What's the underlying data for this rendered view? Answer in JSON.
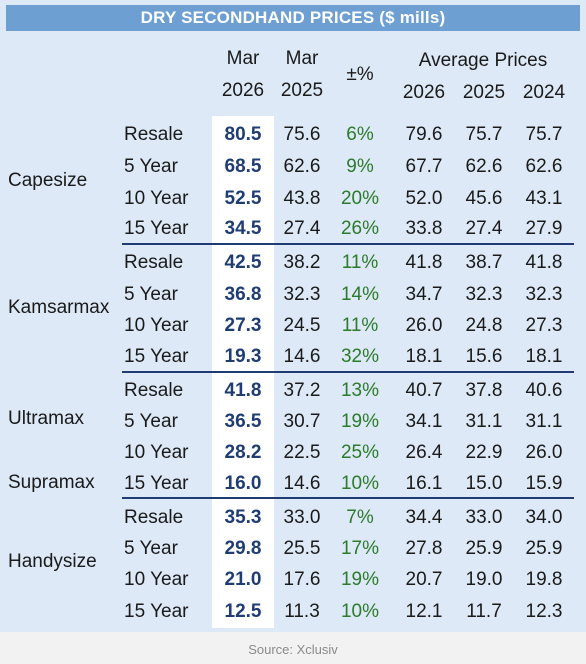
{
  "title": "DRY SECONDHAND PRICES ($ mills)",
  "headers": {
    "mar_a": "Mar",
    "year_a": "2026",
    "mar_b": "Mar",
    "year_b": "2025",
    "pct": "±%",
    "avg": "Average Prices",
    "avg_y1": "2026",
    "avg_y2": "2025",
    "avg_y3": "2024"
  },
  "groups": [
    {
      "name": "Capesize",
      "rows": [
        {
          "age": "Resale",
          "cur": "80.5",
          "prev": "75.6",
          "chg": "6%",
          "a1": "79.6",
          "a2": "75.7",
          "a3": "75.7"
        },
        {
          "age": "5 Year",
          "cur": "68.5",
          "prev": "62.6",
          "chg": "9%",
          "a1": "67.7",
          "a2": "62.6",
          "a3": "62.6"
        },
        {
          "age": "10 Year",
          "cur": "52.5",
          "prev": "43.8",
          "chg": "20%",
          "a1": "52.0",
          "a2": "45.6",
          "a3": "43.1"
        },
        {
          "age": "15 Year",
          "cur": "34.5",
          "prev": "27.4",
          "chg": "26%",
          "a1": "33.8",
          "a2": "27.4",
          "a3": "27.9"
        }
      ]
    },
    {
      "name": "Kamsarmax",
      "rows": [
        {
          "age": "Resale",
          "cur": "42.5",
          "prev": "38.2",
          "chg": "11%",
          "a1": "41.8",
          "a2": "38.7",
          "a3": "41.8"
        },
        {
          "age": "5 Year",
          "cur": "36.8",
          "prev": "32.3",
          "chg": "14%",
          "a1": "34.7",
          "a2": "32.3",
          "a3": "32.3"
        },
        {
          "age": "10 Year",
          "cur": "27.3",
          "prev": "24.5",
          "chg": "11%",
          "a1": "26.0",
          "a2": "24.8",
          "a3": "27.3"
        },
        {
          "age": "15 Year",
          "cur": "19.3",
          "prev": "14.6",
          "chg": "32%",
          "a1": "18.1",
          "a2": "15.6",
          "a3": "18.1"
        }
      ]
    },
    {
      "name": "Ultramax",
      "name2": "Supramax",
      "rows": [
        {
          "age": "Resale",
          "cur": "41.8",
          "prev": "37.2",
          "chg": "13%",
          "a1": "40.7",
          "a2": "37.8",
          "a3": "40.6"
        },
        {
          "age": "5 Year",
          "cur": "36.5",
          "prev": "30.7",
          "chg": "19%",
          "a1": "34.1",
          "a2": "31.1",
          "a3": "31.1"
        },
        {
          "age": "10 Year",
          "cur": "28.2",
          "prev": "22.5",
          "chg": "25%",
          "a1": "26.4",
          "a2": "22.9",
          "a3": "26.0"
        },
        {
          "age": "15 Year",
          "cur": "16.0",
          "prev": "14.6",
          "chg": "10%",
          "a1": "16.1",
          "a2": "15.0",
          "a3": "15.9"
        }
      ]
    },
    {
      "name": "Handysize",
      "rows": [
        {
          "age": "Resale",
          "cur": "35.3",
          "prev": "33.0",
          "chg": "7%",
          "a1": "34.4",
          "a2": "33.0",
          "a3": "34.0"
        },
        {
          "age": "5 Year",
          "cur": "29.8",
          "prev": "25.5",
          "chg": "17%",
          "a1": "27.8",
          "a2": "25.9",
          "a3": "25.9"
        },
        {
          "age": "10 Year",
          "cur": "21.0",
          "prev": "17.6",
          "chg": "19%",
          "a1": "20.7",
          "a2": "19.0",
          "a3": "19.8"
        },
        {
          "age": "15 Year",
          "cur": "12.5",
          "prev": "11.3",
          "chg": "10%",
          "a1": "12.1",
          "a2": "11.7",
          "a3": "12.3"
        }
      ]
    }
  ],
  "source": "Source: Xclusiv"
}
